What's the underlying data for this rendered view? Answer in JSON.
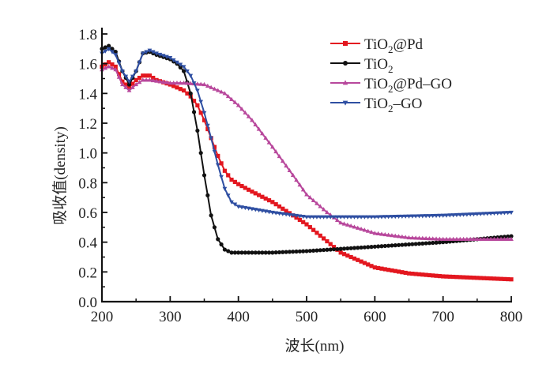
{
  "chart_data": {
    "type": "line",
    "title": "",
    "xlabel": "波长(nm)",
    "ylabel": "吸收值(density)",
    "xlim": [
      200,
      800
    ],
    "ylim": [
      0.0,
      1.8
    ],
    "xticks": [
      "200",
      "300",
      "400",
      "500",
      "600",
      "700",
      "800"
    ],
    "yticks": [
      "0.0",
      "0.2",
      "0.4",
      "0.6",
      "0.8",
      "1.0",
      "1.2",
      "1.4",
      "1.6",
      "1.8"
    ],
    "grid": false,
    "legend_position": "top-right",
    "series": [
      {
        "name": "TiO2@Pd",
        "label_main": "TiO",
        "label_sub": "2",
        "label_rest": "@Pd",
        "color": "#e3171f",
        "marker": "square",
        "x": [
          200,
          210,
          220,
          230,
          240,
          250,
          260,
          270,
          280,
          300,
          320,
          330,
          340,
          350,
          360,
          370,
          380,
          390,
          400,
          420,
          450,
          500,
          550,
          600,
          650,
          700,
          800
        ],
        "y": [
          1.58,
          1.61,
          1.58,
          1.48,
          1.44,
          1.49,
          1.52,
          1.52,
          1.49,
          1.46,
          1.42,
          1.38,
          1.32,
          1.22,
          1.1,
          0.98,
          0.88,
          0.82,
          0.79,
          0.74,
          0.67,
          0.52,
          0.33,
          0.23,
          0.19,
          0.17,
          0.15
        ]
      },
      {
        "name": "TiO2",
        "label_main": "TiO",
        "label_sub": "2",
        "label_rest": "",
        "color": "#111111",
        "marker": "circle",
        "x": [
          200,
          210,
          220,
          230,
          240,
          250,
          260,
          270,
          280,
          300,
          310,
          320,
          330,
          340,
          350,
          360,
          370,
          380,
          390,
          400,
          450,
          500,
          600,
          700,
          800
        ],
        "y": [
          1.7,
          1.72,
          1.68,
          1.55,
          1.46,
          1.55,
          1.67,
          1.68,
          1.66,
          1.63,
          1.6,
          1.55,
          1.4,
          1.15,
          0.85,
          0.58,
          0.42,
          0.35,
          0.33,
          0.33,
          0.33,
          0.34,
          0.37,
          0.4,
          0.44
        ]
      },
      {
        "name": "TiO2@Pd-GO",
        "label_main": "TiO",
        "label_sub": "2",
        "label_rest": "@Pd–GO",
        "color": "#b8489c",
        "marker": "triangle-up",
        "x": [
          200,
          210,
          220,
          230,
          240,
          250,
          260,
          270,
          300,
          320,
          350,
          380,
          400,
          420,
          450,
          480,
          500,
          530,
          550,
          600,
          650,
          700,
          800
        ],
        "y": [
          1.56,
          1.58,
          1.56,
          1.46,
          1.42,
          1.46,
          1.49,
          1.49,
          1.47,
          1.47,
          1.46,
          1.4,
          1.32,
          1.22,
          1.04,
          0.85,
          0.72,
          0.6,
          0.53,
          0.46,
          0.43,
          0.42,
          0.42
        ]
      },
      {
        "name": "TiO2-GO",
        "label_main": "TiO",
        "label_sub": "2",
        "label_rest": "–GO",
        "color": "#2f4fa2",
        "marker": "triangle-down",
        "x": [
          200,
          210,
          220,
          230,
          240,
          250,
          260,
          270,
          280,
          300,
          320,
          330,
          340,
          350,
          360,
          370,
          380,
          390,
          400,
          450,
          500,
          550,
          600,
          700,
          800
        ],
        "y": [
          1.67,
          1.7,
          1.66,
          1.55,
          1.48,
          1.55,
          1.67,
          1.69,
          1.67,
          1.64,
          1.58,
          1.52,
          1.42,
          1.27,
          1.1,
          0.92,
          0.76,
          0.67,
          0.64,
          0.6,
          0.57,
          0.57,
          0.57,
          0.58,
          0.6
        ]
      }
    ]
  }
}
